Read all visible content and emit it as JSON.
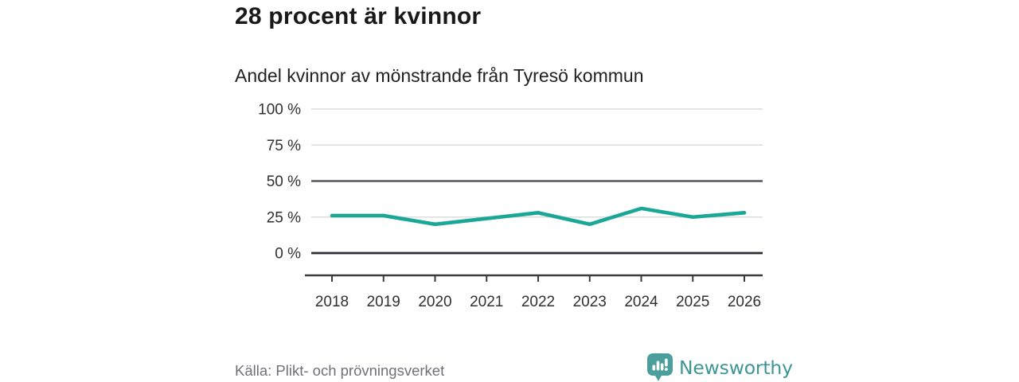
{
  "header": {
    "title": "28 procent är kvinnor",
    "subtitle": "Andel kvinnor av mönstrande från Tyresö kommun"
  },
  "footer": {
    "source": "Källa: Plikt- och prövningsverket",
    "brand": "Newsworthy"
  },
  "colors": {
    "line": "#1ba795",
    "grid_light": "#dcdcdc",
    "grid_strong": "#55555c",
    "grid_baseline": "#2e2e32",
    "axis": "#3a3a3e",
    "tick_label": "#303030",
    "logo_bubble": "#4a9e9c",
    "brand_text": "#3c9694"
  },
  "chart_data": {
    "type": "line",
    "title": "28 procent är kvinnor",
    "subtitle": "Andel kvinnor av mönstrande från Tyresö kommun",
    "x": [
      "2018",
      "2019",
      "2020",
      "2021",
      "2022",
      "2023",
      "2024",
      "2025",
      "2026"
    ],
    "series": [
      {
        "name": "Andel kvinnor av mönstrande",
        "values": [
          26,
          26,
          20,
          24,
          28,
          20,
          31,
          25,
          28
        ],
        "color": "#1ba795"
      }
    ],
    "unit": "%",
    "ylim": [
      0,
      100
    ],
    "yticks": [
      {
        "value": 100,
        "label": "100 %",
        "emphasis": "light"
      },
      {
        "value": 75,
        "label": "75 %",
        "emphasis": "light"
      },
      {
        "value": 50,
        "label": "50 %",
        "emphasis": "strong"
      },
      {
        "value": 25,
        "label": "25 %",
        "emphasis": "light"
      },
      {
        "value": 0,
        "label": "0 %",
        "emphasis": "baseline"
      }
    ],
    "grid": "horizontal",
    "legend": "none",
    "source": "Källa: Plikt- och prövningsverket"
  }
}
